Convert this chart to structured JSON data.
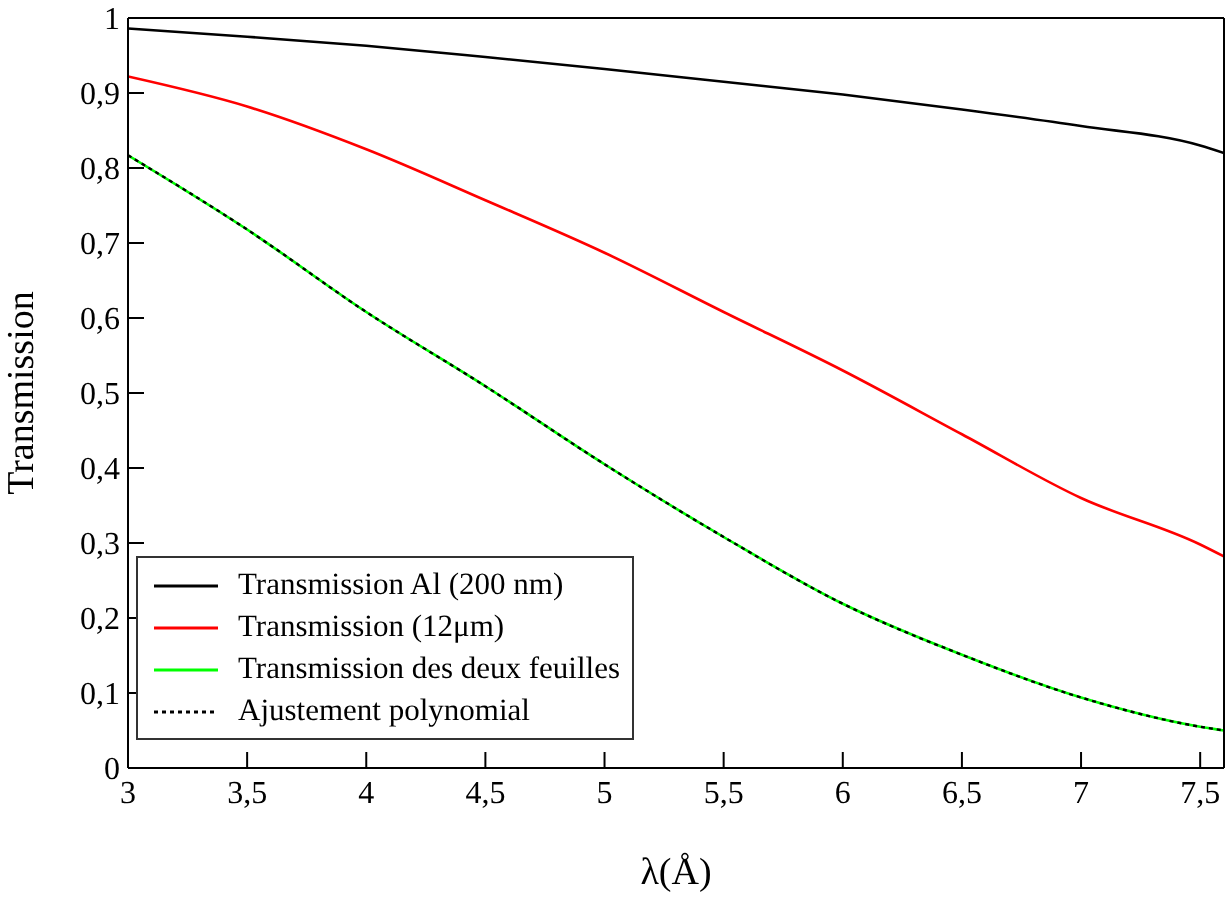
{
  "chart_data": {
    "type": "line",
    "xlabel": "λ(Å)",
    "ylabel": "Transmission",
    "xlim": [
      3,
      7.6
    ],
    "xticks": [
      3,
      {
        "value": 3.5,
        "label": "3,5"
      },
      4,
      {
        "value": 4.5,
        "label": "4,5"
      },
      5,
      {
        "value": 5.5,
        "label": "5,5"
      },
      6,
      {
        "value": 6.5,
        "label": "6,5"
      },
      7,
      {
        "value": 7.5,
        "label": "7,5"
      }
    ],
    "ylim": [
      0,
      1
    ],
    "yticks": [
      0,
      {
        "value": 0.1,
        "label": "0,1"
      },
      {
        "value": 0.2,
        "label": "0,2"
      },
      {
        "value": 0.3,
        "label": "0,3"
      },
      {
        "value": 0.4,
        "label": "0,4"
      },
      {
        "value": 0.5,
        "label": "0,5"
      },
      {
        "value": 0.6,
        "label": "0,6"
      },
      {
        "value": 0.7,
        "label": "0,7"
      },
      {
        "value": 0.8,
        "label": "0,8"
      },
      {
        "value": 0.9,
        "label": "0,9"
      },
      1
    ],
    "x": [
      3,
      3.5,
      4,
      4.5,
      5,
      5.5,
      6,
      6.5,
      7,
      7.5,
      7.6
    ],
    "legend": "bottom left",
    "marker": "none",
    "series": [
      {
        "name": "Transmission Al (200 nm)",
        "color": "#000000",
        "values": [
          0.986,
          0.975,
          0.963,
          0.948,
          0.932,
          0.915,
          0.898,
          0.878,
          0.856,
          0.83,
          0.82
        ]
      },
      {
        "name": "Transmission (12μm)",
        "color": "#ff0000",
        "values": [
          0.922,
          0.882,
          0.825,
          0.757,
          0.687,
          0.608,
          0.53,
          0.445,
          0.36,
          0.298,
          0.282
        ]
      },
      {
        "name": "Transmission des deux feuilles",
        "color": "#00ff00",
        "values": [
          0.817,
          0.718,
          0.608,
          0.509,
          0.405,
          0.308,
          0.219,
          0.151,
          0.094,
          0.055,
          0.05
        ]
      },
      {
        "name": "Ajustement polynomial",
        "color": "#000000",
        "line_style": "dotted",
        "values": [
          0.817,
          0.718,
          0.608,
          0.509,
          0.405,
          0.308,
          0.219,
          0.151,
          0.094,
          0.055,
          0.05
        ]
      }
    ]
  }
}
